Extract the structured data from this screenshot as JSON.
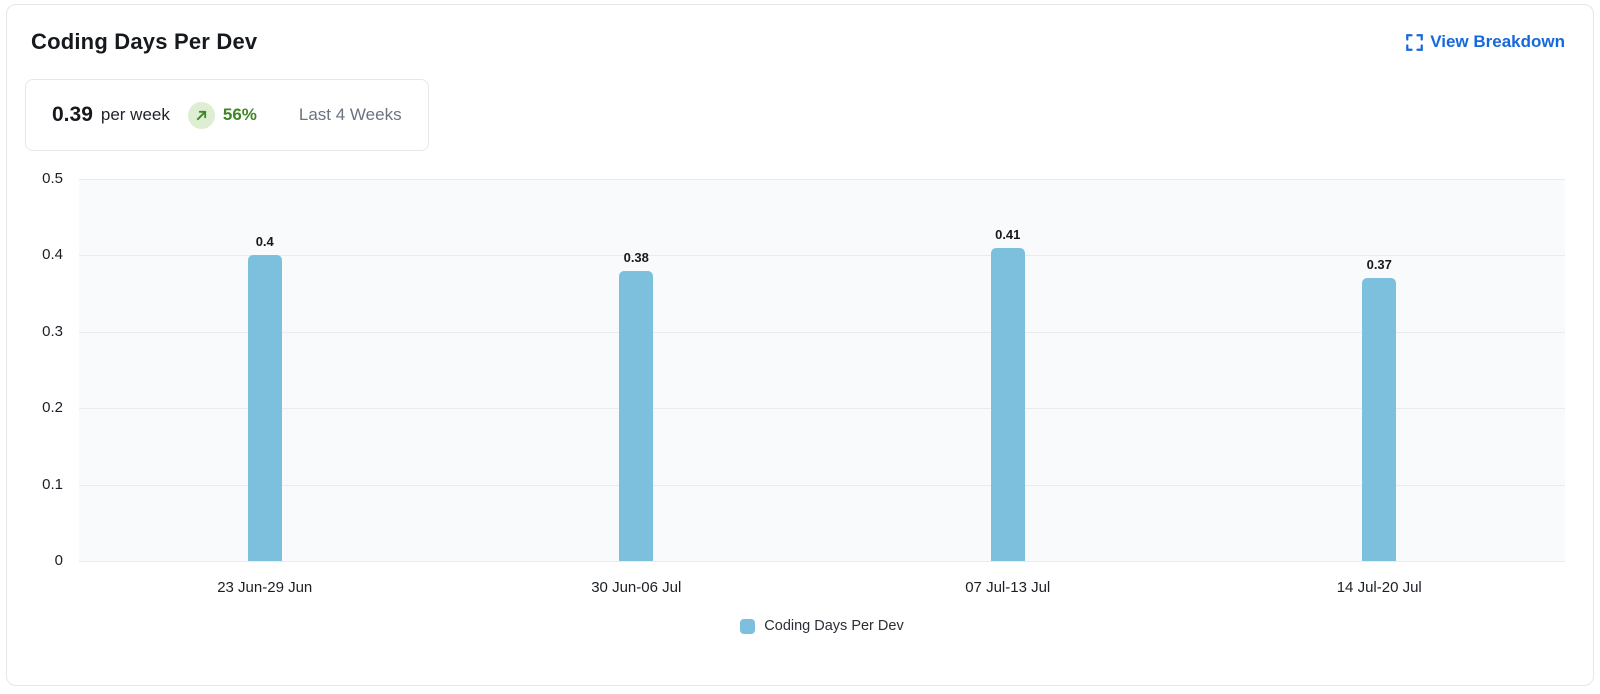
{
  "header": {
    "title": "Coding Days Per Dev",
    "view_breakdown_label": "View Breakdown",
    "view_breakdown_icon": "expand-icon",
    "link_color": "#1668dc"
  },
  "summary": {
    "value": "0.39",
    "unit": "per week",
    "trend_icon": "arrow-up-right-icon",
    "trend_change": "56%",
    "trend_text_color": "#3f8624",
    "trend_badge_bg": "#ddeed3",
    "period": "Last 4 Weeks"
  },
  "chart_data": {
    "type": "bar",
    "title": "Coding Days Per Dev",
    "categories": [
      "23 Jun-29 Jun",
      "30 Jun-06 Jul",
      "07 Jul-13 Jul",
      "14 Jul-20 Jul"
    ],
    "values": [
      0.4,
      0.38,
      0.41,
      0.37
    ],
    "data_labels": [
      "0.4",
      "0.38",
      "0.41",
      "0.37"
    ],
    "xlabel": "",
    "ylabel": "",
    "ylim": [
      0,
      0.5
    ],
    "yticks": [
      "0.5",
      "0.4",
      "0.3",
      "0.2",
      "0.1",
      "0"
    ],
    "grid": true,
    "grid_color": "#e9ebef",
    "plot_background": "#f8fafc",
    "bar_color": "#7cc0dd",
    "legend_position": "bottom",
    "legend": [
      {
        "label": "Coding Days Per Dev",
        "color": "#7cc0dd"
      }
    ]
  }
}
